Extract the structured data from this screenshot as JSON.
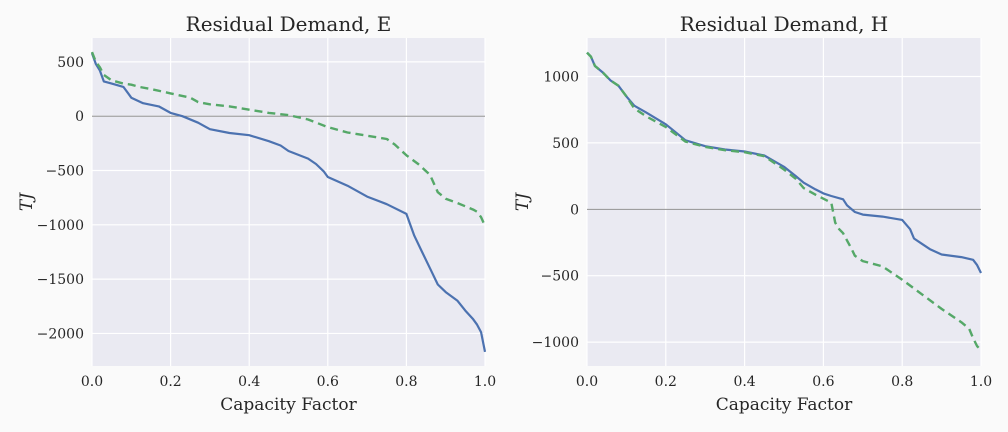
{
  "chart_data": [
    {
      "type": "line",
      "title": "Residual Demand, E",
      "xlabel": "Capacity Factor",
      "ylabel": "TJ",
      "xlim": [
        0.0,
        1.0
      ],
      "ylim": [
        -2300,
        720
      ],
      "xticks": [
        0.0,
        0.2,
        0.4,
        0.6,
        0.8,
        1.0
      ],
      "xtick_labels": [
        "0.0",
        "0.2",
        "0.4",
        "0.6",
        "0.8",
        "1.0"
      ],
      "yticks": [
        500,
        0,
        -500,
        -1000,
        -1500,
        -2000
      ],
      "ytick_labels": [
        "500",
        "0",
        "−500",
        "−1000",
        "−1500",
        "−2000"
      ],
      "hline": 0,
      "grid": true,
      "series": [
        {
          "color": "#4c72b0",
          "style": "solid",
          "x": [
            0.0,
            0.01,
            0.02,
            0.03,
            0.05,
            0.08,
            0.09,
            0.1,
            0.13,
            0.17,
            0.2,
            0.23,
            0.27,
            0.3,
            0.35,
            0.4,
            0.45,
            0.48,
            0.5,
            0.55,
            0.57,
            0.59,
            0.6,
            0.65,
            0.7,
            0.75,
            0.8,
            0.81,
            0.82,
            0.84,
            0.86,
            0.88,
            0.9,
            0.93,
            0.95,
            0.97,
            0.98,
            0.99,
            1.0
          ],
          "y": [
            580,
            480,
            420,
            320,
            300,
            270,
            220,
            170,
            120,
            90,
            30,
            0,
            -60,
            -120,
            -155,
            -175,
            -230,
            -270,
            -320,
            -390,
            -440,
            -510,
            -560,
            -640,
            -740,
            -810,
            -900,
            -1000,
            -1100,
            -1250,
            -1400,
            -1550,
            -1620,
            -1700,
            -1790,
            -1870,
            -1920,
            -1990,
            -2170
          ]
        },
        {
          "color": "#55a868",
          "style": "dashed",
          "x": [
            0.0,
            0.01,
            0.02,
            0.03,
            0.05,
            0.08,
            0.1,
            0.12,
            0.15,
            0.2,
            0.25,
            0.27,
            0.3,
            0.35,
            0.4,
            0.45,
            0.5,
            0.55,
            0.6,
            0.65,
            0.7,
            0.75,
            0.77,
            0.8,
            0.83,
            0.86,
            0.88,
            0.9,
            0.93,
            0.95,
            0.97,
            0.98,
            0.99,
            1.0
          ],
          "y": [
            590,
            500,
            450,
            380,
            330,
            300,
            290,
            270,
            250,
            210,
            170,
            130,
            110,
            90,
            60,
            30,
            10,
            -30,
            -100,
            -150,
            -180,
            -210,
            -260,
            -360,
            -440,
            -540,
            -700,
            -760,
            -800,
            -830,
            -860,
            -880,
            -930,
            -1010
          ]
        }
      ]
    },
    {
      "type": "line",
      "title": "Residual Demand, H",
      "xlabel": "Capacity Factor",
      "ylabel": "TJ",
      "xlim": [
        0.0,
        1.0
      ],
      "ylim": [
        -1180,
        1290
      ],
      "xticks": [
        0.0,
        0.2,
        0.4,
        0.6,
        0.8,
        1.0
      ],
      "xtick_labels": [
        "0.0",
        "0.2",
        "0.4",
        "0.6",
        "0.8",
        "1.0"
      ],
      "yticks": [
        1000,
        500,
        0,
        -500,
        -1000
      ],
      "ytick_labels": [
        "1000",
        "500",
        "0",
        "−500",
        "−1000"
      ],
      "hline": 0,
      "grid": true,
      "series": [
        {
          "color": "#4c72b0",
          "style": "solid",
          "x": [
            0.0,
            0.01,
            0.02,
            0.04,
            0.06,
            0.08,
            0.1,
            0.12,
            0.15,
            0.2,
            0.25,
            0.3,
            0.35,
            0.4,
            0.45,
            0.5,
            0.53,
            0.55,
            0.58,
            0.6,
            0.62,
            0.65,
            0.66,
            0.68,
            0.7,
            0.75,
            0.8,
            0.82,
            0.83,
            0.85,
            0.87,
            0.9,
            0.95,
            0.98,
            0.99,
            1.0
          ],
          "y": [
            1180,
            1150,
            1080,
            1030,
            970,
            930,
            850,
            780,
            730,
            640,
            520,
            475,
            450,
            435,
            405,
            320,
            250,
            200,
            150,
            120,
            100,
            75,
            30,
            -20,
            -40,
            -55,
            -80,
            -150,
            -220,
            -260,
            -300,
            -340,
            -360,
            -380,
            -420,
            -480
          ]
        },
        {
          "color": "#55a868",
          "style": "dashed",
          "x": [
            0.0,
            0.01,
            0.02,
            0.04,
            0.06,
            0.08,
            0.1,
            0.12,
            0.15,
            0.2,
            0.25,
            0.3,
            0.35,
            0.4,
            0.45,
            0.5,
            0.53,
            0.55,
            0.58,
            0.6,
            0.62,
            0.63,
            0.64,
            0.65,
            0.67,
            0.68,
            0.7,
            0.75,
            0.8,
            0.85,
            0.9,
            0.95,
            0.97,
            0.98,
            0.99,
            1.0
          ],
          "y": [
            1180,
            1150,
            1080,
            1030,
            970,
            930,
            850,
            760,
            700,
            620,
            510,
            470,
            445,
            430,
            400,
            300,
            230,
            160,
            110,
            80,
            50,
            -100,
            -150,
            -180,
            -290,
            -350,
            -390,
            -430,
            -530,
            -640,
            -750,
            -850,
            -900,
            -970,
            -1030,
            -1060
          ]
        }
      ]
    }
  ]
}
